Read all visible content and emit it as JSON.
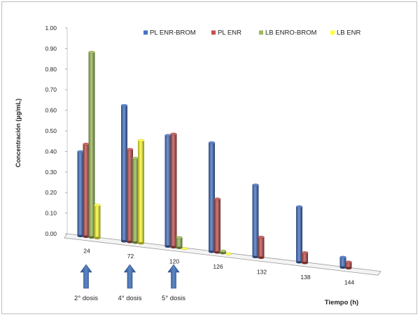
{
  "chart_data": {
    "type": "bar",
    "variant": "3d-column-cylinder",
    "ylabel": "Concentración (µg/mL)",
    "xlabel": "Tiempo (h)",
    "ylim": [
      0,
      1.0
    ],
    "yticks": [
      "0.00",
      "0.10",
      "0.20",
      "0.30",
      "0.40",
      "0.50",
      "0.60",
      "0.70",
      "0.80",
      "0.90",
      "1.00"
    ],
    "categories": [
      "24",
      "72",
      "120",
      "126",
      "132",
      "138",
      "144"
    ],
    "legend_position": "top-right",
    "series": [
      {
        "name": "PL ENR-BROM",
        "color": "#4472C4",
        "values": [
          0.41,
          0.66,
          0.54,
          0.53,
          0.35,
          0.27,
          0.05
        ]
      },
      {
        "name": "PL ENR",
        "color": "#C0504D",
        "values": [
          0.45,
          0.45,
          0.55,
          0.26,
          0.1,
          0.05,
          0.03
        ]
      },
      {
        "name": "LB ENRO-BROM",
        "color": "#9BBB59",
        "values": [
          0.9,
          0.41,
          0.05,
          0.01,
          null,
          null,
          null
        ]
      },
      {
        "name": "LB ENR",
        "color": "#FFFF33",
        "values": [
          0.16,
          0.5,
          0.0,
          0.0,
          null,
          null,
          null
        ]
      }
    ],
    "annotations": [
      {
        "label": "2° dosis",
        "category": "24"
      },
      {
        "label": "4° dosis",
        "category": "72"
      },
      {
        "label": "5° dosis",
        "category": "120"
      }
    ]
  }
}
